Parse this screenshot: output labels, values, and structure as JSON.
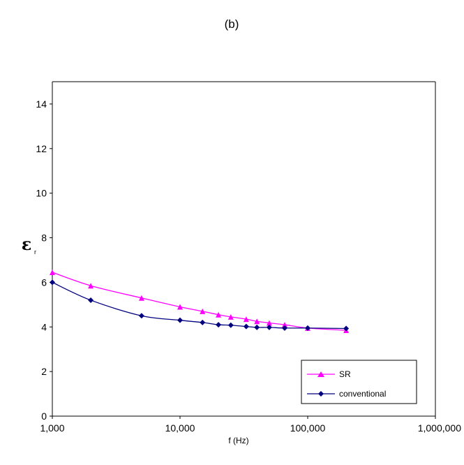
{
  "panel_label": "(b)",
  "chart_data": {
    "type": "line",
    "xscale": "log",
    "xlabel": "f (Hz)",
    "ylabel_main": "ε",
    "ylabel_sub": "r",
    "xlim": [
      1000,
      1000000
    ],
    "ylim": [
      0,
      15
    ],
    "xticks": [
      1000,
      10000,
      100000,
      1000000
    ],
    "xtick_labels": [
      "1,000",
      "10,000",
      "100,000",
      "1,000,000"
    ],
    "yticks": [
      0,
      2,
      4,
      6,
      8,
      10,
      12,
      14
    ],
    "ytick_labels": [
      "0",
      "2",
      "4",
      "6",
      "8",
      "10",
      "12",
      "14"
    ],
    "grid": false,
    "legend_position": "bottom-right",
    "series": [
      {
        "name": "SR",
        "color": "#ff00ff",
        "marker": "triangle",
        "x": [
          1000,
          2000,
          5000,
          10000,
          15000,
          20000,
          25000,
          33000,
          40000,
          50000,
          66000,
          100000,
          200000
        ],
        "y": [
          6.45,
          5.85,
          5.3,
          4.9,
          4.7,
          4.55,
          4.45,
          4.35,
          4.25,
          4.18,
          4.1,
          3.95,
          3.85
        ]
      },
      {
        "name": "conventional",
        "color": "#00007f",
        "marker": "diamond",
        "x": [
          1000,
          2000,
          5000,
          10000,
          15000,
          20000,
          25000,
          33000,
          40000,
          50000,
          66000,
          100000,
          200000
        ],
        "y": [
          6.0,
          5.2,
          4.5,
          4.3,
          4.2,
          4.1,
          4.08,
          4.02,
          3.98,
          3.98,
          3.95,
          3.95,
          3.93
        ]
      }
    ]
  }
}
